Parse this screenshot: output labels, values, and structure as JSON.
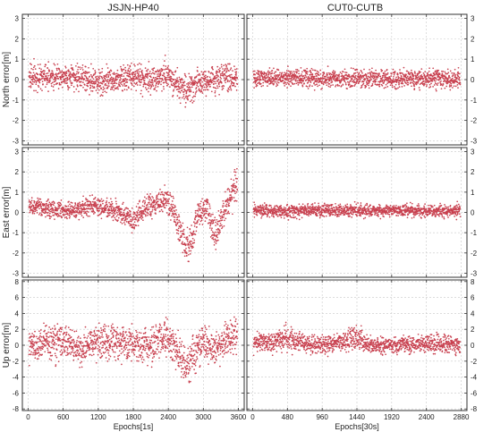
{
  "figure": {
    "columns": [
      "JSJN-HP40",
      "CUT0-CUTB"
    ],
    "point_color": "#c8404f"
  },
  "chart_data": [
    {
      "type": "scatter",
      "title": "JSJN-HP40",
      "ylabel": "North error[m]",
      "xlabel": "",
      "xlim": [
        -100,
        3700
      ],
      "ylim": [
        -3.2,
        3.2
      ],
      "xticks": [
        0,
        600,
        1200,
        1800,
        2400,
        3000,
        3600
      ],
      "yticks": [
        -3,
        -2,
        -1,
        0,
        1,
        2,
        3
      ],
      "grid": true,
      "series": [
        {
          "x": [
            0,
            300,
            600,
            900,
            1200,
            1500,
            1800,
            2100,
            2400,
            2700,
            3000,
            3300,
            3600
          ],
          "y": [
            0.1,
            0.15,
            0.2,
            0.1,
            -0.1,
            0.0,
            0.1,
            0.0,
            0.2,
            -0.5,
            0.0,
            0.05,
            0.1
          ],
          "spread": [
            0.5,
            0.5,
            0.5,
            0.5,
            0.55,
            0.5,
            0.5,
            0.55,
            0.6,
            0.6,
            0.5,
            0.55,
            0.5
          ]
        }
      ]
    },
    {
      "type": "scatter",
      "title": "CUT0-CUTB",
      "ylabel": "North error[m]",
      "xlabel": "",
      "xlim": [
        -80,
        2960
      ],
      "ylim": [
        -3.2,
        3.2
      ],
      "xticks": [
        0,
        480,
        960,
        1440,
        1920,
        2400,
        2880
      ],
      "yticks": [
        -3,
        -2,
        -1,
        0,
        1,
        2,
        3
      ],
      "grid": true,
      "series": [
        {
          "x": [
            0,
            480,
            960,
            1440,
            1920,
            2400,
            2880
          ],
          "y": [
            0.05,
            0.1,
            0.05,
            0.05,
            0.05,
            0.05,
            0.05
          ],
          "spread": [
            0.35,
            0.35,
            0.35,
            0.35,
            0.35,
            0.35,
            0.35
          ]
        }
      ]
    },
    {
      "type": "scatter",
      "title": "",
      "ylabel": "East error[m]",
      "xlabel": "",
      "xlim": [
        -100,
        3700
      ],
      "ylim": [
        -3.2,
        3.2
      ],
      "xticks": [
        0,
        600,
        1200,
        1800,
        2400,
        3000,
        3600
      ],
      "yticks": [
        -3,
        -2,
        -1,
        0,
        1,
        2,
        3
      ],
      "grid": true,
      "series": [
        {
          "x": [
            0,
            300,
            600,
            900,
            1200,
            1500,
            1800,
            2000,
            2200,
            2400,
            2550,
            2700,
            2800,
            2900,
            3050,
            3200,
            3400,
            3550,
            3600
          ],
          "y": [
            0.3,
            0.2,
            0.1,
            0.2,
            0.3,
            0.1,
            -0.5,
            0.2,
            0.5,
            0.6,
            -0.5,
            -1.7,
            -1.5,
            -0.2,
            0.4,
            -1.3,
            0.5,
            1.3,
            1.0
          ],
          "spread": [
            0.3,
            0.35,
            0.35,
            0.35,
            0.35,
            0.4,
            0.5,
            0.4,
            0.5,
            0.6,
            0.6,
            0.7,
            0.6,
            0.6,
            0.6,
            0.6,
            0.6,
            0.7,
            0.6
          ]
        }
      ]
    },
    {
      "type": "scatter",
      "title": "",
      "ylabel": "East error[m]",
      "xlabel": "",
      "xlim": [
        -80,
        2960
      ],
      "ylim": [
        -3.2,
        3.2
      ],
      "xticks": [
        0,
        480,
        960,
        1440,
        1920,
        2400,
        2880
      ],
      "yticks": [
        -3,
        -2,
        -1,
        0,
        1,
        2,
        3
      ],
      "grid": true,
      "series": [
        {
          "x": [
            0,
            480,
            960,
            1440,
            1920,
            2400,
            2880
          ],
          "y": [
            0.1,
            0.05,
            0.1,
            0.1,
            0.1,
            0.05,
            0.1
          ],
          "spread": [
            0.25,
            0.25,
            0.25,
            0.25,
            0.25,
            0.25,
            0.25
          ]
        }
      ]
    },
    {
      "type": "scatter",
      "title": "",
      "ylabel": "Up error[m]",
      "xlabel": "Epochs[1s]",
      "xlim": [
        -100,
        3700
      ],
      "ylim": [
        -8.2,
        8.2
      ],
      "xticks": [
        0,
        600,
        1200,
        1800,
        2400,
        3000,
        3600
      ],
      "yticks": [
        -8,
        -6,
        -4,
        -2,
        0,
        2,
        4,
        6,
        8
      ],
      "grid": true,
      "series": [
        {
          "x": [
            0,
            300,
            600,
            900,
            1200,
            1500,
            1800,
            2100,
            2400,
            2550,
            2700,
            2850,
            3000,
            3200,
            3400,
            3600
          ],
          "y": [
            -0.5,
            0.5,
            0.5,
            -0.5,
            0.5,
            0.5,
            0.0,
            0.0,
            1.0,
            -1.0,
            -2.5,
            -1.0,
            0.5,
            -0.5,
            1.0,
            1.5
          ],
          "spread": [
            1.8,
            1.7,
            1.7,
            1.6,
            1.8,
            1.8,
            1.8,
            1.7,
            1.8,
            2.0,
            2.2,
            1.8,
            1.6,
            1.8,
            1.8,
            1.8
          ]
        }
      ]
    },
    {
      "type": "scatter",
      "title": "",
      "ylabel": "Up error[m]",
      "xlabel": "Epochs[30s]",
      "xlim": [
        -80,
        2960
      ],
      "ylim": [
        -8.2,
        8.2
      ],
      "xticks": [
        0,
        480,
        960,
        1440,
        1920,
        2400,
        2880
      ],
      "yticks": [
        -8,
        -6,
        -4,
        -2,
        0,
        2,
        4,
        6,
        8
      ],
      "grid": true,
      "series": [
        {
          "x": [
            0,
            300,
            480,
            700,
            960,
            1200,
            1440,
            1600,
            1920,
            2400,
            2880
          ],
          "y": [
            0.3,
            0.5,
            1.0,
            0.2,
            0.0,
            0.3,
            1.0,
            0.0,
            0.0,
            0.2,
            0.0
          ],
          "spread": [
            0.9,
            1.0,
            1.3,
            0.9,
            0.9,
            0.9,
            1.3,
            0.9,
            0.9,
            0.9,
            0.9
          ]
        }
      ]
    }
  ]
}
